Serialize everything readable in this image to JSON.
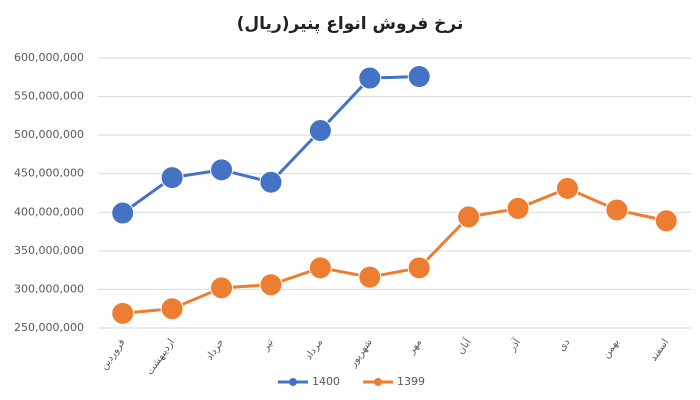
{
  "chart_data": {
    "type": "line",
    "title": "نرخ فروش انواع پنیر(ریال)",
    "categories": [
      "فروردین",
      "اردیبهشت",
      "خرداد",
      "تیر",
      "مرداد",
      "شهریور",
      "مهر",
      "آبان",
      "آذر",
      "دی",
      "بهمن",
      "اسفند"
    ],
    "series": [
      {
        "name": "1400",
        "color": "#4472c4",
        "values": [
          399000000,
          445000000,
          455000000,
          439000000,
          506000000,
          574000000,
          576000000,
          null,
          null,
          null,
          null,
          null
        ]
      },
      {
        "name": "1399",
        "color": "#ed7d31",
        "values": [
          269000000,
          275000000,
          302000000,
          306000000,
          328000000,
          316000000,
          328000000,
          394000000,
          405000000,
          431000000,
          403000000,
          389000000
        ]
      }
    ],
    "ylim": [
      250000000,
      600000000
    ],
    "yticks": [
      {
        "value": 250000000,
        "label": "250,000,000"
      },
      {
        "value": 300000000,
        "label": "300,000,000"
      },
      {
        "value": 350000000,
        "label": "350,000,000"
      },
      {
        "value": 400000000,
        "label": "400,000,000"
      },
      {
        "value": 450000000,
        "label": "450,000,000"
      },
      {
        "value": 500000000,
        "label": "500,000,000"
      },
      {
        "value": 550000000,
        "label": "550,000,000"
      },
      {
        "value": 600000000,
        "label": "600,000,000"
      }
    ],
    "grid": true
  }
}
